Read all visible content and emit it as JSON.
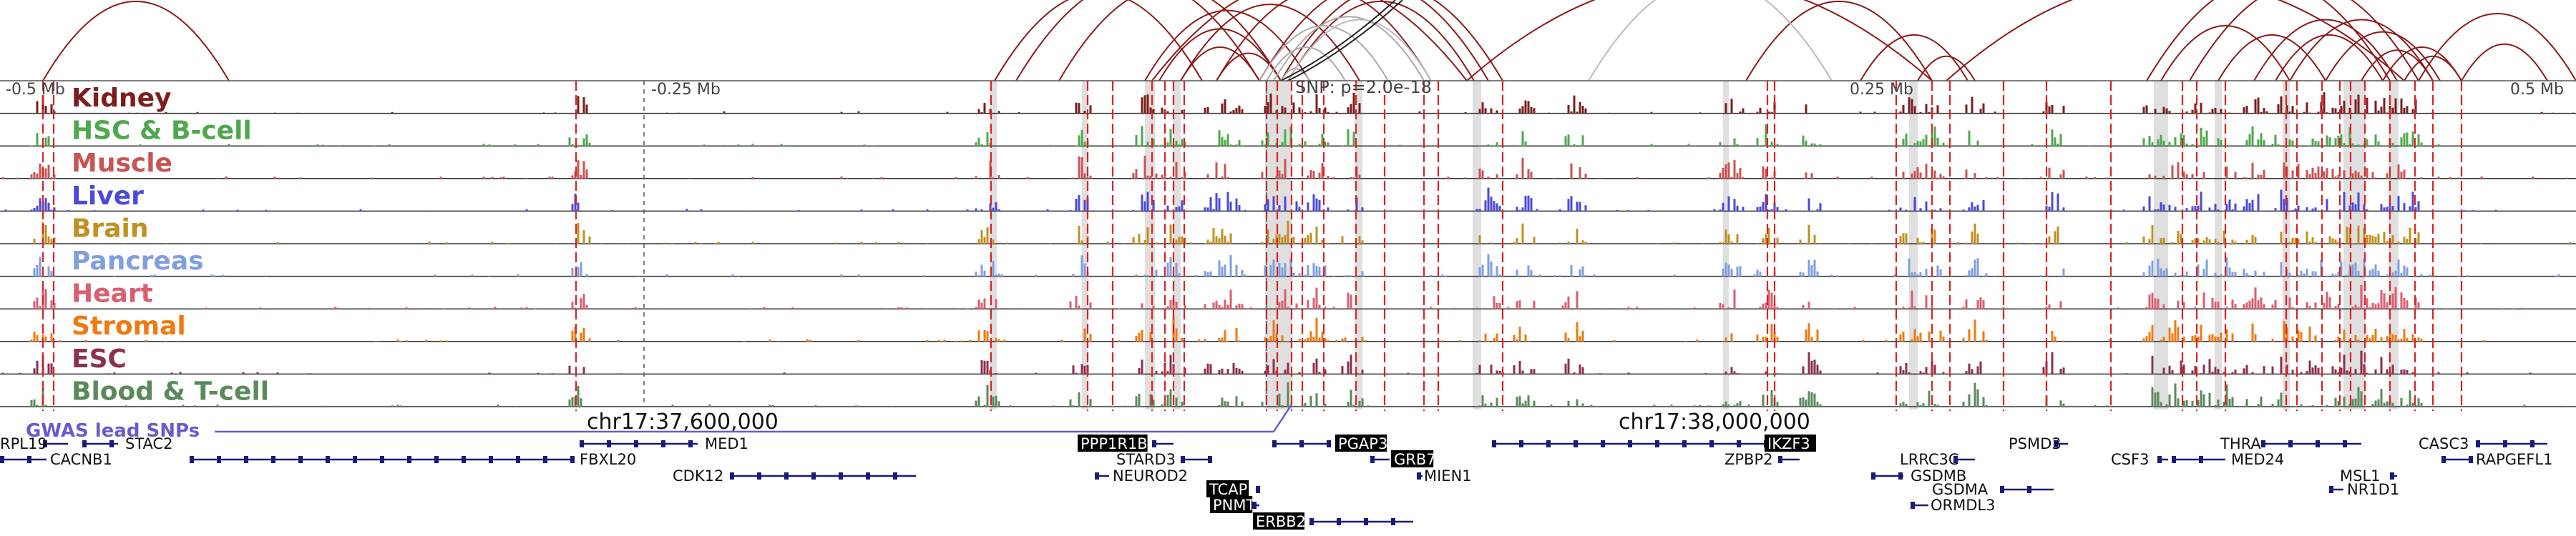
{
  "axis": {
    "ticks": [
      {
        "label": "-0.5 Mb"
      },
      {
        "label": "-0.25 Mb"
      },
      {
        "label": "0.25 Mb"
      },
      {
        "label": "0.5 Mb"
      }
    ],
    "snp_label": "SNP: p=2.0e-18"
  },
  "tracks": [
    {
      "name": "Kidney",
      "color": "#7b1e1e"
    },
    {
      "name": "HSC & B-cell",
      "color": "#4ea84e"
    },
    {
      "name": "Muscle",
      "color": "#c95454"
    },
    {
      "name": "Liver",
      "color": "#4a4ad8"
    },
    {
      "name": "Brain",
      "color": "#c09020"
    },
    {
      "name": "Pancreas",
      "color": "#7f9fdf"
    },
    {
      "name": "Heart",
      "color": "#d95f70"
    },
    {
      "name": "Stromal",
      "color": "#ee7a10"
    },
    {
      "name": "ESC",
      "color": "#8b3050"
    },
    {
      "name": "Blood & T-cell",
      "color": "#5a8a5a"
    }
  ],
  "coords": {
    "left": "chr17:37,600,000",
    "right": "chr17:38,000,000"
  },
  "gwas_label": "GWAS lead SNPs",
  "genes": [
    {
      "name": "RPL19",
      "highlight": false
    },
    {
      "name": "STAC2",
      "highlight": false
    },
    {
      "name": "CACNB1",
      "highlight": false
    },
    {
      "name": "FBXL20",
      "highlight": false
    },
    {
      "name": "MED1",
      "highlight": false
    },
    {
      "name": "CDK12",
      "highlight": false
    },
    {
      "name": "PPP1R1B",
      "highlight": true
    },
    {
      "name": "STARD3",
      "highlight": false
    },
    {
      "name": "NEUROD2",
      "highlight": false
    },
    {
      "name": "TCAP",
      "highlight": true
    },
    {
      "name": "PNMT",
      "highlight": true
    },
    {
      "name": "ERBB2",
      "highlight": true
    },
    {
      "name": "PGAP3",
      "highlight": true
    },
    {
      "name": "GRB7",
      "highlight": true
    },
    {
      "name": "MIEN1",
      "highlight": false
    },
    {
      "name": "IKZF3",
      "highlight": true
    },
    {
      "name": "ZPBP2",
      "highlight": false
    },
    {
      "name": "LRRC3C",
      "highlight": false
    },
    {
      "name": "GSDMB",
      "highlight": false
    },
    {
      "name": "GSDMA",
      "highlight": false
    },
    {
      "name": "ORMDL3",
      "highlight": false
    },
    {
      "name": "PSMD3",
      "highlight": false
    },
    {
      "name": "CSF3",
      "highlight": false
    },
    {
      "name": "MED24",
      "highlight": false
    },
    {
      "name": "THRA",
      "highlight": false
    },
    {
      "name": "CASC3",
      "highlight": false
    },
    {
      "name": "MSL1",
      "highlight": false
    },
    {
      "name": "NR1D1",
      "highlight": false
    },
    {
      "name": "RAPGEFL1",
      "highlight": false
    }
  ]
}
